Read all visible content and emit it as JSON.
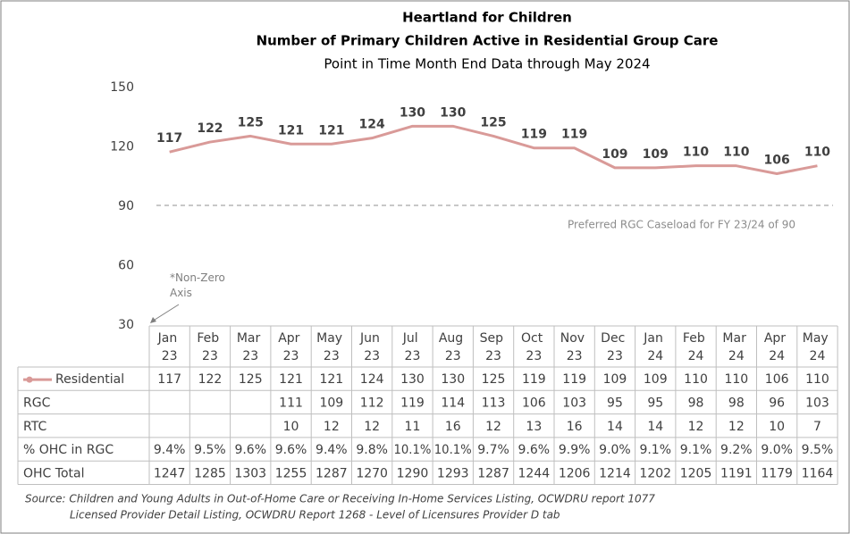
{
  "chart_data": {
    "type": "line",
    "title": "Heartland for Children",
    "subtitles": [
      "Number of Primary Children Active in Residential Group Care",
      "Point in Time Month End Data through May 2024"
    ],
    "categories": [
      "Jan 23",
      "Feb 23",
      "Mar 23",
      "Apr 23",
      "May 23",
      "Jun 23",
      "Jul 23",
      "Aug 23",
      "Sep 23",
      "Oct 23",
      "Nov 23",
      "Dec 23",
      "Jan 24",
      "Feb 24",
      "Mar 24",
      "Apr 24",
      "May 24"
    ],
    "series": [
      {
        "name": "Residential",
        "color": "#d99a98",
        "values": [
          117,
          122,
          125,
          121,
          121,
          124,
          130,
          130,
          125,
          119,
          119,
          109,
          109,
          110,
          110,
          106,
          110
        ]
      }
    ],
    "ylim": [
      30,
      150
    ],
    "yticks": [
      30,
      60,
      90,
      120,
      150
    ],
    "reference_line": {
      "value": 90,
      "label": "Preferred RGC Caseload for FY 23/24 of 90"
    },
    "annotation": "*Non-Zero Axis",
    "table": {
      "rows": [
        {
          "name": "RGC",
          "values": [
            null,
            null,
            null,
            111,
            109,
            112,
            119,
            114,
            113,
            106,
            103,
            95,
            95,
            98,
            98,
            96,
            103
          ]
        },
        {
          "name": "RTC",
          "values": [
            null,
            null,
            null,
            10,
            12,
            12,
            11,
            16,
            12,
            13,
            16,
            14,
            14,
            12,
            12,
            10,
            7
          ]
        },
        {
          "name": "% OHC in RGC",
          "values": [
            9.4,
            9.5,
            9.6,
            9.6,
            9.4,
            9.8,
            10.1,
            10.1,
            9.7,
            9.6,
            9.9,
            9.0,
            9.1,
            9.1,
            9.2,
            9.0,
            9.5
          ],
          "value_labels": [
            "9.4%",
            "9.5%",
            "9.6%",
            "9.6%",
            "9.4%",
            "9.8%",
            "10.1%",
            "10.1%",
            "9.7%",
            "9.6%",
            "9.9%",
            "9.0%",
            "9.1%",
            "9.1%",
            "9.2%",
            "9.0%",
            "9.5%"
          ]
        },
        {
          "name": "OHC Total",
          "values": [
            1247,
            1285,
            1303,
            1255,
            1287,
            1270,
            1290,
            1293,
            1287,
            1244,
            1206,
            1214,
            1202,
            1205,
            1191,
            1179,
            1164
          ]
        }
      ]
    },
    "sources": [
      "Source: Children and Young Adults in Out-of-Home Care or Receiving In-Home Services Listing, OCWDRU report 1077",
      "Licensed Provider Detail Listing, OCWDRU Report 1268 - Level of Licensures Provider D tab"
    ]
  }
}
